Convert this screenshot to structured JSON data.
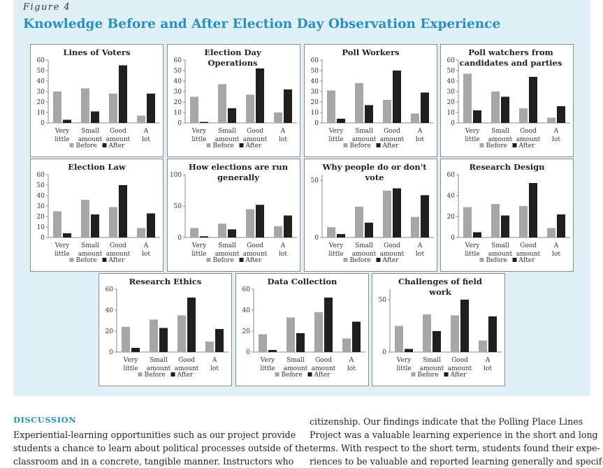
{
  "figure": {
    "label": "Figure 4",
    "title": "Knowledge Before and After Election Day Observation Experience"
  },
  "legend": {
    "before_label": "Before",
    "after_label": "After",
    "before_color": "#a6a6a6",
    "after_color": "#1f1f1f"
  },
  "chart_data": [
    {
      "type": "bar",
      "title": "Lines of Voters",
      "categories": [
        "Very little",
        "Small amount",
        "Good amount",
        "A lot"
      ],
      "yticks": [
        0,
        10,
        20,
        30,
        40,
        50,
        60
      ],
      "ylim": [
        0,
        60
      ],
      "series": [
        {
          "name": "Before",
          "values": [
            30,
            33,
            28,
            7
          ]
        },
        {
          "name": "After",
          "values": [
            3,
            11,
            55,
            28
          ]
        }
      ]
    },
    {
      "type": "bar",
      "title": "Election Day Operations",
      "categories": [
        "Very little",
        "Small amount",
        "Good amount",
        "A lot"
      ],
      "yticks": [
        0,
        10,
        20,
        30,
        40,
        50,
        60
      ],
      "ylim": [
        0,
        60
      ],
      "series": [
        {
          "name": "Before",
          "values": [
            25,
            37,
            27,
            10
          ]
        },
        {
          "name": "After",
          "values": [
            1,
            14,
            52,
            32
          ]
        }
      ]
    },
    {
      "type": "bar",
      "title": "Poll Workers",
      "categories": [
        "Very little",
        "Small amount",
        "Good amount",
        "A lot"
      ],
      "yticks": [
        0,
        10,
        20,
        30,
        40,
        50,
        60
      ],
      "ylim": [
        0,
        60
      ],
      "series": [
        {
          "name": "Before",
          "values": [
            31,
            38,
            22,
            9
          ]
        },
        {
          "name": "After",
          "values": [
            4,
            17,
            50,
            29
          ]
        }
      ]
    },
    {
      "type": "bar",
      "title": "Poll watchers from candidates and parties",
      "categories": [
        "Very little",
        "Small amount",
        "Good amount",
        "A lot"
      ],
      "yticks": [
        0,
        10,
        20,
        30,
        40,
        50,
        60
      ],
      "ylim": [
        0,
        60
      ],
      "series": [
        {
          "name": "Before",
          "values": [
            47,
            30,
            14,
            5
          ]
        },
        {
          "name": "After",
          "values": [
            12,
            25,
            44,
            16
          ]
        }
      ]
    },
    {
      "type": "bar",
      "title": "Election Law",
      "categories": [
        "Very little",
        "Small amount",
        "Good amount",
        "A lot"
      ],
      "yticks": [
        0,
        10,
        20,
        30,
        40,
        50,
        60
      ],
      "ylim": [
        0,
        60
      ],
      "series": [
        {
          "name": "Before",
          "values": [
            25,
            36,
            29,
            9
          ]
        },
        {
          "name": "After",
          "values": [
            4,
            22,
            50,
            23
          ]
        }
      ]
    },
    {
      "type": "bar",
      "title": "How elections are run generally",
      "categories": [
        "Very little",
        "Small amount",
        "Good amount",
        "A lot"
      ],
      "yticks": [
        0,
        50,
        100
      ],
      "ylim": [
        0,
        100
      ],
      "series": [
        {
          "name": "Before",
          "values": [
            15,
            22,
            45,
            18
          ]
        },
        {
          "name": "After",
          "values": [
            2,
            13,
            52,
            35
          ]
        }
      ]
    },
    {
      "type": "bar",
      "title": "Why people do or don't vote",
      "categories": [
        "Very little",
        "Small amount",
        "Good amount",
        "A lot"
      ],
      "yticks": [
        0,
        50
      ],
      "ylim": [
        0,
        55
      ],
      "series": [
        {
          "name": "Before",
          "values": [
            9,
            27,
            41,
            18
          ]
        },
        {
          "name": "After",
          "values": [
            3,
            13,
            43,
            37
          ]
        }
      ]
    },
    {
      "type": "bar",
      "title": "Research Design",
      "categories": [
        "Very little",
        "Small amount",
        "Good amount",
        "A lot"
      ],
      "yticks": [
        0,
        20,
        40,
        60
      ],
      "ylim": [
        0,
        60
      ],
      "series": [
        {
          "name": "Before",
          "values": [
            29,
            32,
            30,
            9
          ]
        },
        {
          "name": "After",
          "values": [
            5,
            21,
            52,
            22
          ]
        }
      ]
    },
    {
      "type": "bar",
      "title": "Research Ethics",
      "categories": [
        "Very little",
        "Small amount",
        "Good amount",
        "A lot"
      ],
      "yticks": [
        0,
        20,
        40,
        60
      ],
      "ylim": [
        0,
        60
      ],
      "series": [
        {
          "name": "Before",
          "values": [
            24,
            31,
            35,
            10
          ]
        },
        {
          "name": "After",
          "values": [
            4,
            23,
            52,
            22
          ]
        }
      ]
    },
    {
      "type": "bar",
      "title": "Data Collection",
      "categories": [
        "Very little",
        "Small amount",
        "Good amount",
        "A lot"
      ],
      "yticks": [
        0,
        20,
        40,
        60
      ],
      "ylim": [
        0,
        60
      ],
      "series": [
        {
          "name": "Before",
          "values": [
            17,
            33,
            38,
            13
          ]
        },
        {
          "name": "After",
          "values": [
            2,
            18,
            52,
            29
          ]
        }
      ]
    },
    {
      "type": "bar",
      "title": "Challenges of field work",
      "categories": [
        "Very little",
        "Small amount",
        "Good amount",
        "A lot"
      ],
      "yticks": [
        0,
        50
      ],
      "ylim": [
        0,
        60
      ],
      "series": [
        {
          "name": "Before",
          "values": [
            25,
            36,
            35,
            11
          ]
        },
        {
          "name": "After",
          "values": [
            3,
            20,
            50,
            34
          ]
        }
      ]
    }
  ],
  "discussion": {
    "heading": "DISCUSSION",
    "left_lines": [
      "Experiential-learning opportunities such as our project provide",
      "students a chance to learn about political processes outside of the",
      "classroom and in a concrete, tangible manner. Instructors who"
    ],
    "right_lines": [
      "citizenship. Our findings indicate that the Polling Place Lines",
      "Project was a valuable learning experience in the short and long",
      "terms. With respect to the short term, students found their expe-",
      "riences to be valuable and reported learning generally and specif-"
    ]
  }
}
